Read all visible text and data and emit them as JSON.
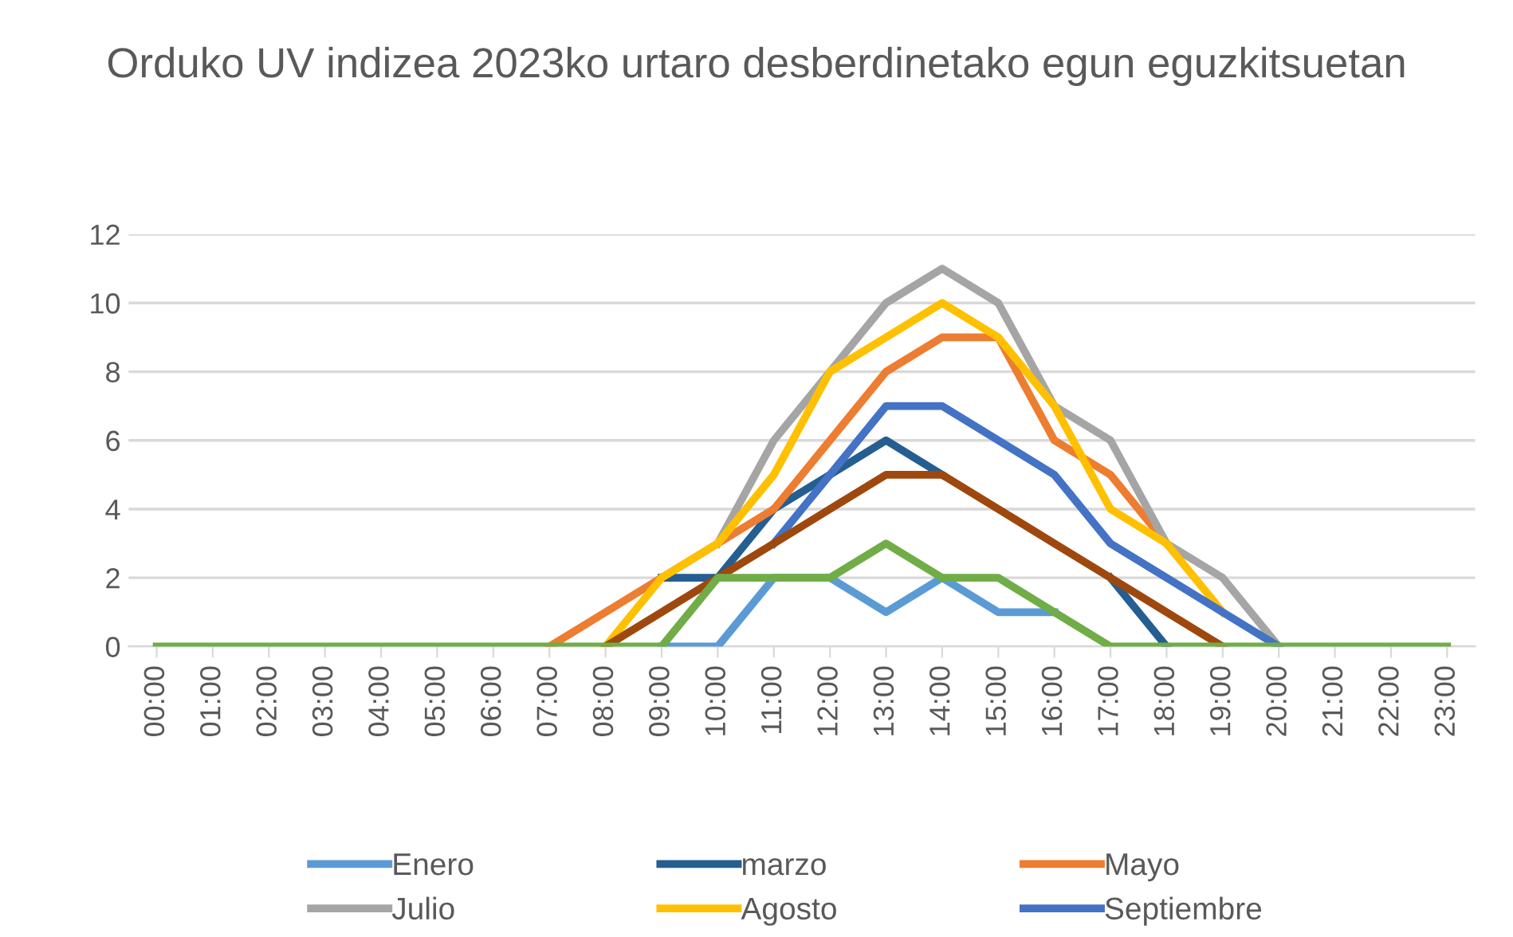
{
  "chart_data": {
    "type": "line",
    "title": "Orduko UV indizea 2023ko urtaro desberdinetako egun eguzkitsuetan",
    "categories": [
      "00:00",
      "01:00",
      "02:00",
      "03:00",
      "04:00",
      "05:00",
      "06:00",
      "07:00",
      "08:00",
      "09:00",
      "10:00",
      "11:00",
      "12:00",
      "13:00",
      "14:00",
      "15:00",
      "16:00",
      "17:00",
      "18:00",
      "19:00",
      "20:00",
      "21:00",
      "22:00",
      "23:00"
    ],
    "series": [
      {
        "name": "Enero",
        "color": "#5b9bd5",
        "values": [
          null,
          null,
          null,
          null,
          null,
          null,
          null,
          null,
          null,
          0,
          0,
          2,
          2,
          1,
          2,
          1,
          1,
          null,
          null,
          null,
          null,
          null,
          null,
          null
        ]
      },
      {
        "name": "marzo",
        "color": "#255e91",
        "values": [
          null,
          null,
          null,
          null,
          null,
          null,
          null,
          null,
          null,
          2,
          2,
          4,
          5,
          6,
          5,
          null,
          null,
          2,
          0,
          null,
          null,
          null,
          null,
          null
        ]
      },
      {
        "name": "Mayo",
        "color": "#ed7d31",
        "values": [
          null,
          null,
          null,
          null,
          null,
          null,
          null,
          0,
          1,
          2,
          3,
          4,
          6,
          8,
          9,
          9,
          6,
          5,
          3,
          null,
          null,
          null,
          null,
          null
        ]
      },
      {
        "name": "Julio",
        "color": "#a5a5a5",
        "values": [
          null,
          null,
          null,
          null,
          null,
          null,
          null,
          null,
          null,
          null,
          3,
          6,
          8,
          10,
          11,
          10,
          7,
          6,
          3,
          2,
          0,
          null,
          null,
          null
        ]
      },
      {
        "name": "Agosto",
        "color": "#ffc000",
        "values": [
          null,
          null,
          null,
          null,
          null,
          null,
          null,
          null,
          0,
          2,
          3,
          5,
          8,
          9,
          10,
          9,
          7,
          4,
          3,
          1,
          null,
          null,
          null,
          null
        ]
      },
      {
        "name": "Septiembre",
        "color": "#4472c4",
        "values": [
          null,
          null,
          null,
          null,
          null,
          null,
          null,
          null,
          null,
          null,
          null,
          3,
          5,
          7,
          7,
          6,
          5,
          3,
          2,
          1,
          0,
          null,
          null,
          null
        ]
      },
      {
        "color": "#9e480e",
        "values": [
          null,
          null,
          null,
          null,
          null,
          null,
          null,
          null,
          0,
          1,
          2,
          3,
          4,
          5,
          5,
          4,
          3,
          2,
          1,
          0,
          null,
          null,
          null,
          null
        ]
      },
      {
        "color": "#70ad47",
        "values": [
          0,
          0,
          0,
          0,
          0,
          0,
          0,
          0,
          0,
          0,
          2,
          2,
          2,
          3,
          2,
          2,
          1,
          0,
          0,
          0,
          0,
          0,
          0,
          0
        ]
      }
    ],
    "ylim": [
      0,
      12
    ],
    "yticks": [
      0,
      2,
      4,
      6,
      8,
      10,
      12
    ],
    "grid": "y",
    "legend": "bottom",
    "marker": "none",
    "line_style": "solid"
  }
}
